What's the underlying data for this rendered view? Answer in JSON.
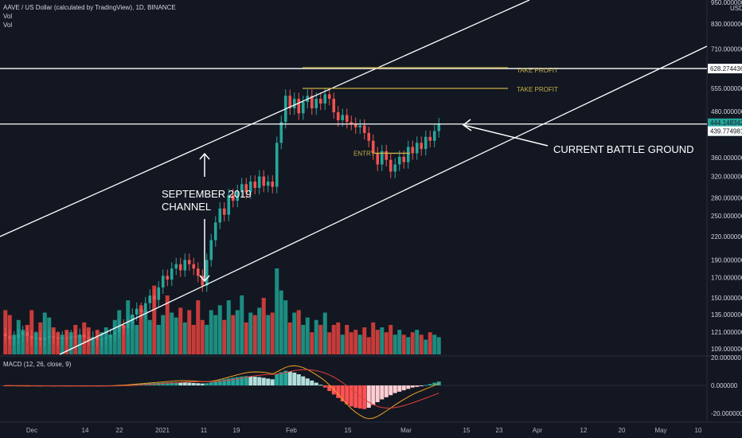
{
  "header": {
    "title": "AAVE / US Dollar (calculated by TradingView), 1D, BINANCE",
    "vol1": "Vol",
    "vol2": "Vol"
  },
  "colors": {
    "background": "#131722",
    "up": "#26a69a",
    "down": "#ef5350",
    "up_vol": "#1d8c80",
    "down_vol": "#c63c3a",
    "macd_pos_strong": "#26a69a",
    "macd_pos_weak": "#b2dfdb",
    "macd_neg_strong": "#ff5252",
    "macd_neg_weak": "#ffcdd2",
    "macd_line": "#f0a020",
    "signal_line": "#e0403a",
    "take_profit": "#c8b04a",
    "drawing": "#ffffff",
    "price_label_green": "#26a69a"
  },
  "chart_data": {
    "type": "candlestick",
    "title": "AAVE / US Dollar (calculated by TradingView), 1D, BINANCE",
    "price_scale": "log",
    "ylim": [
      100,
      950
    ],
    "price_ticks": [
      "950.000000",
      "830.000000",
      "710.000000",
      "628.274436",
      "555.000000",
      "480.000000",
      "444.148342",
      "439.774981",
      "360.000000",
      "320.000000",
      "280.000000",
      "250.000000",
      "220.000000",
      "190.000000",
      "170.000000",
      "150.000000",
      "135.000000",
      "121.000000",
      "109.000000"
    ],
    "x_ticks": [
      "Dec",
      "14",
      "22",
      "2021",
      "11",
      "19",
      "Feb",
      "15",
      "Mar",
      "15",
      "23",
      "Apr",
      "12",
      "20",
      "May",
      "10"
    ],
    "axis_unit": "USD",
    "candles": [
      {
        "o": 120,
        "c": 118
      },
      {
        "o": 118,
        "c": 116
      },
      {
        "o": 116,
        "c": 117
      },
      {
        "o": 117,
        "c": 119
      },
      {
        "o": 119,
        "c": 121
      },
      {
        "o": 121,
        "c": 118
      },
      {
        "o": 118,
        "c": 116
      },
      {
        "o": 116,
        "c": 117
      },
      {
        "o": 117,
        "c": 115
      },
      {
        "o": 115,
        "c": 117
      },
      {
        "o": 117,
        "c": 118
      },
      {
        "o": 118,
        "c": 117
      },
      {
        "o": 117,
        "c": 116
      },
      {
        "o": 116,
        "c": 117
      },
      {
        "o": 117,
        "c": 116
      },
      {
        "o": 116,
        "c": 118
      },
      {
        "o": 118,
        "c": 117
      },
      {
        "o": 117,
        "c": 119
      },
      {
        "o": 119,
        "c": 117
      },
      {
        "o": 117,
        "c": 116
      },
      {
        "o": 116,
        "c": 117
      },
      {
        "o": 117,
        "c": 115
      },
      {
        "o": 115,
        "c": 116
      },
      {
        "o": 116,
        "c": 117
      },
      {
        "o": 117,
        "c": 119
      },
      {
        "o": 119,
        "c": 121
      },
      {
        "o": 121,
        "c": 126
      },
      {
        "o": 126,
        "c": 124
      },
      {
        "o": 124,
        "c": 128
      },
      {
        "o": 128,
        "c": 135
      },
      {
        "o": 135,
        "c": 140
      },
      {
        "o": 140,
        "c": 137
      },
      {
        "o": 137,
        "c": 145
      },
      {
        "o": 145,
        "c": 152
      },
      {
        "o": 152,
        "c": 148
      },
      {
        "o": 148,
        "c": 160
      },
      {
        "o": 160,
        "c": 172
      },
      {
        "o": 172,
        "c": 168
      },
      {
        "o": 168,
        "c": 180
      },
      {
        "o": 180,
        "c": 185
      },
      {
        "o": 185,
        "c": 178
      },
      {
        "o": 178,
        "c": 190
      },
      {
        "o": 190,
        "c": 185
      },
      {
        "o": 185,
        "c": 180
      },
      {
        "o": 180,
        "c": 172
      },
      {
        "o": 172,
        "c": 162
      },
      {
        "o": 162,
        "c": 190
      },
      {
        "o": 190,
        "c": 215
      },
      {
        "o": 215,
        "c": 240
      },
      {
        "o": 240,
        "c": 262
      },
      {
        "o": 262,
        "c": 252
      },
      {
        "o": 252,
        "c": 285
      },
      {
        "o": 285,
        "c": 275
      },
      {
        "o": 275,
        "c": 292
      },
      {
        "o": 292,
        "c": 305
      },
      {
        "o": 305,
        "c": 290
      },
      {
        "o": 290,
        "c": 310
      },
      {
        "o": 310,
        "c": 298
      },
      {
        "o": 298,
        "c": 320
      },
      {
        "o": 320,
        "c": 302
      },
      {
        "o": 302,
        "c": 310
      },
      {
        "o": 310,
        "c": 300
      },
      {
        "o": 300,
        "c": 395
      },
      {
        "o": 395,
        "c": 450
      },
      {
        "o": 450,
        "c": 530
      },
      {
        "o": 530,
        "c": 490
      },
      {
        "o": 490,
        "c": 520
      },
      {
        "o": 520,
        "c": 475
      },
      {
        "o": 475,
        "c": 510
      },
      {
        "o": 510,
        "c": 530
      },
      {
        "o": 530,
        "c": 490
      },
      {
        "o": 490,
        "c": 520
      },
      {
        "o": 520,
        "c": 505
      },
      {
        "o": 505,
        "c": 535
      },
      {
        "o": 535,
        "c": 520
      },
      {
        "o": 520,
        "c": 478
      },
      {
        "o": 478,
        "c": 455
      },
      {
        "o": 455,
        "c": 470
      },
      {
        "o": 470,
        "c": 450
      },
      {
        "o": 450,
        "c": 445
      },
      {
        "o": 445,
        "c": 435
      },
      {
        "o": 435,
        "c": 440
      },
      {
        "o": 440,
        "c": 420
      },
      {
        "o": 420,
        "c": 400
      },
      {
        "o": 400,
        "c": 370
      },
      {
        "o": 370,
        "c": 345
      },
      {
        "o": 345,
        "c": 375
      },
      {
        "o": 375,
        "c": 355
      },
      {
        "o": 355,
        "c": 330
      },
      {
        "o": 330,
        "c": 345
      },
      {
        "o": 345,
        "c": 362
      },
      {
        "o": 362,
        "c": 350
      },
      {
        "o": 350,
        "c": 385
      },
      {
        "o": 385,
        "c": 370
      },
      {
        "o": 370,
        "c": 395
      },
      {
        "o": 395,
        "c": 380
      },
      {
        "o": 380,
        "c": 410
      },
      {
        "o": 410,
        "c": 400
      },
      {
        "o": 400,
        "c": 425
      },
      {
        "o": 425,
        "c": 444
      }
    ],
    "volume": [
      18,
      16,
      8,
      14,
      10,
      12,
      18,
      9,
      13,
      17,
      15,
      11,
      9,
      8,
      10,
      9,
      12,
      8,
      13,
      11,
      7,
      10,
      9,
      11,
      8,
      14,
      18,
      12,
      22,
      16,
      12,
      20,
      18,
      14,
      28,
      12,
      16,
      24,
      17,
      15,
      19,
      13,
      18,
      12,
      22,
      14,
      12,
      18,
      16,
      20,
      14,
      22,
      16,
      18,
      24,
      13,
      17,
      16,
      19,
      23,
      16,
      17,
      35,
      26,
      22,
      13,
      17,
      18,
      12,
      15,
      9,
      14,
      12,
      17,
      9,
      12,
      13,
      8,
      12,
      9,
      10,
      8,
      11,
      7,
      13,
      10,
      11,
      9,
      12,
      8,
      10,
      8,
      7,
      9,
      10,
      8,
      6,
      9,
      8,
      7
    ],
    "macd_hist": [
      -0.3,
      -0.3,
      -0.2,
      -0.3,
      -0.2,
      -0.3,
      -0.2,
      -0.2,
      -0.3,
      -0.2,
      -0.2,
      -0.3,
      -0.2,
      -0.2,
      -0.3,
      -0.2,
      -0.2,
      -0.2,
      -0.3,
      -0.2,
      -0.2,
      -0.3,
      -0.2,
      -0.2,
      -0.1,
      0.1,
      0.3,
      0.4,
      0.6,
      0.8,
      1.0,
      1.1,
      1.3,
      1.5,
      1.6,
      1.8,
      2.0,
      2.1,
      2.3,
      2.4,
      2.3,
      2.2,
      2.0,
      1.8,
      1.6,
      1.4,
      1.6,
      2.2,
      3.0,
      3.8,
      4.4,
      5.0,
      5.5,
      6.0,
      6.4,
      6.7,
      6.6,
      6.3,
      6.0,
      5.5,
      4.9,
      4.4,
      8.0,
      9.5,
      10.5,
      10.0,
      9.2,
      8.0,
      6.5,
      5.0,
      3.5,
      2.0,
      0.5,
      -1.5,
      -4.0,
      -6.5,
      -9.0,
      -11.5,
      -13.5,
      -15.0,
      -16.0,
      -16.5,
      -17.0,
      -16.0,
      -14.0,
      -12.0,
      -10.0,
      -8.5,
      -7.0,
      -5.5,
      -4.5,
      -3.5,
      -2.5,
      -1.5,
      -1.0,
      -0.5,
      0.3,
      1.0,
      2.0,
      2.8
    ],
    "annotations": {
      "take_profit_1": {
        "label": "TAKE PROFIT",
        "price": 628.27
      },
      "take_profit_2": {
        "label": "TAKE PROFIT",
        "price": 555
      },
      "entry": {
        "label": "ENTRY",
        "price": 370
      },
      "channel": {
        "label1": "SEPTEMBER 2019",
        "label2": "CHANNEL"
      },
      "battle": {
        "label": "CURRENT BATTLE GROUND"
      }
    },
    "current_price_label": "444.148342",
    "countdown": "38:56",
    "horizontal_level_label": "628.274436",
    "lower_level_label": "439.774981",
    "macd": {
      "label": "MACD (12, 26, close, 9)",
      "ticks": [
        "20.000000",
        "0.000000",
        "-20.000000"
      ]
    }
  }
}
